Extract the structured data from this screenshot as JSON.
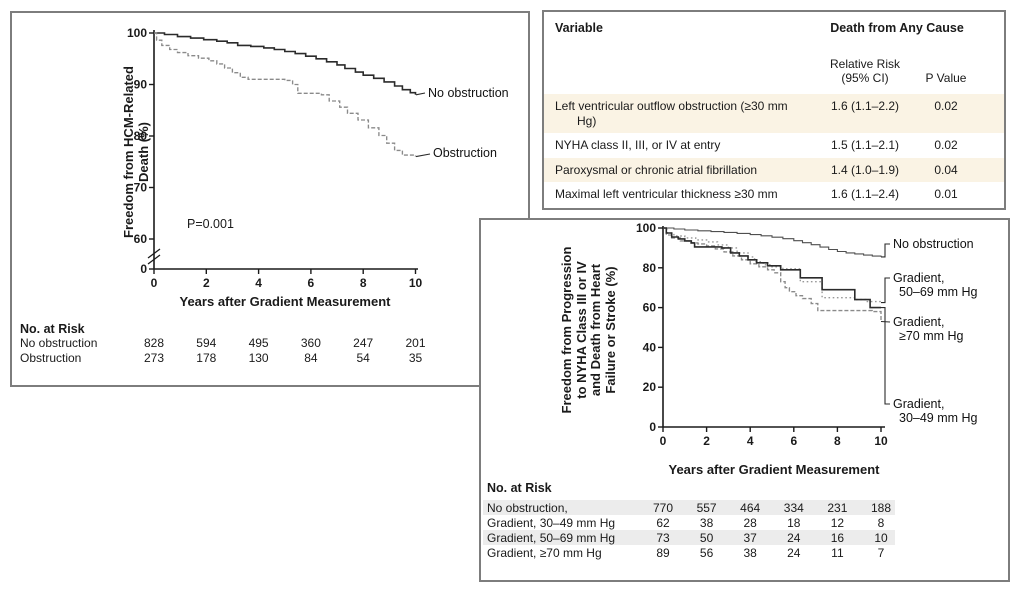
{
  "figure": {
    "rr_table": {
      "col_header": "Variable",
      "group_header": "Death from Any Cause",
      "subheader_line1": "Relative Risk",
      "subheader_line2": "(95% CI)",
      "pvalue_header": "P Value",
      "rows": [
        {
          "variable": "Left ventricular outflow obstruction (≥30 mm Hg)",
          "rr": "1.6 (1.1–2.2)",
          "p": "0.02",
          "shaded": true
        },
        {
          "variable": "NYHA class II, III, or IV at entry",
          "rr": "1.5 (1.1–2.1)",
          "p": "0.02",
          "shaded": false
        },
        {
          "variable": "Paroxysmal or chronic atrial fibrillation",
          "rr": "1.4 (1.0–1.9)",
          "p": "0.04",
          "shaded": true
        },
        {
          "variable": "Maximal left ventricular thickness ≥30 mm",
          "rr": "1.6 (1.1–2.4)",
          "p": "0.01",
          "shaded": false
        }
      ]
    },
    "colors": {
      "panel_border": "#7d7d7d",
      "table_row_cream": "#faf3e4",
      "risk_row_gray": "#ececec",
      "curve_dark": "#2b2b2b",
      "curve_gray": "#8a8a8a"
    }
  },
  "chart_data": [
    {
      "id": "freedom-from-hcm-death",
      "type": "line",
      "subtype": "kaplan-meier-step",
      "ylabel_lines": [
        "Freedom from HCM-Related",
        "Death (%)"
      ],
      "xlabel": "Years after Gradient Measurement",
      "annotation": "P=0.001",
      "xlim": [
        0,
        10
      ],
      "xticks": [
        0,
        2,
        4,
        6,
        8,
        10
      ],
      "yticks": [
        100,
        90,
        80,
        70,
        60
      ],
      "ybreak_to_zero": true,
      "grid": false,
      "series": [
        {
          "name": "No obstruction",
          "line": "solid-dark",
          "points": [
            [
              0,
              100
            ],
            [
              0.4,
              99.7
            ],
            [
              0.9,
              99.3
            ],
            [
              1.4,
              99
            ],
            [
              1.9,
              98.7
            ],
            [
              2.4,
              98.4
            ],
            [
              2.8,
              98.1
            ],
            [
              3.2,
              97.6
            ],
            [
              3.7,
              97.4
            ],
            [
              4.2,
              97.1
            ],
            [
              4.6,
              96.8
            ],
            [
              5,
              96.4
            ],
            [
              5.4,
              96
            ],
            [
              5.8,
              95.5
            ],
            [
              6.2,
              95
            ],
            [
              6.6,
              94.4
            ],
            [
              7,
              93.8
            ],
            [
              7.3,
              93.1
            ],
            [
              7.7,
              92.4
            ],
            [
              8,
              91.8
            ],
            [
              8.4,
              91.2
            ],
            [
              8.8,
              90.5
            ],
            [
              9.2,
              89.7
            ],
            [
              9.5,
              89
            ],
            [
              9.8,
              88.4
            ],
            [
              10,
              88
            ]
          ]
        },
        {
          "name": "Obstruction",
          "line": "dashed-gray",
          "points": [
            [
              0,
              100
            ],
            [
              0.1,
              98.6
            ],
            [
              0.3,
              97.6
            ],
            [
              0.6,
              96.8
            ],
            [
              0.9,
              96.2
            ],
            [
              1.3,
              95.6
            ],
            [
              1.7,
              95.1
            ],
            [
              2.1,
              94.6
            ],
            [
              2.4,
              94
            ],
            [
              2.7,
              93.2
            ],
            [
              3,
              92.3
            ],
            [
              3.3,
              91.4
            ],
            [
              3.6,
              91
            ],
            [
              5,
              90.8
            ],
            [
              5.3,
              90
            ],
            [
              5.5,
              88.3
            ],
            [
              6.4,
              88
            ],
            [
              6.7,
              86.8
            ],
            [
              7.1,
              85.6
            ],
            [
              7.4,
              84.4
            ],
            [
              7.8,
              83.1
            ],
            [
              8.2,
              81.6
            ],
            [
              8.6,
              80.1
            ],
            [
              8.9,
              78.6
            ],
            [
              9.2,
              77.2
            ],
            [
              9.5,
              76.3
            ],
            [
              10,
              76
            ]
          ]
        }
      ],
      "risk_table": {
        "title": "No. at Risk",
        "years": [
          0,
          2,
          4,
          6,
          8,
          10
        ],
        "rows": [
          {
            "label": "No obstruction",
            "values": [
              828,
              594,
              495,
              360,
              247,
              201
            ],
            "shaded": false
          },
          {
            "label": "Obstruction",
            "values": [
              273,
              178,
              130,
              84,
              54,
              35
            ],
            "shaded": false
          }
        ]
      }
    },
    {
      "id": "freedom-from-nyha-progression",
      "type": "line",
      "subtype": "kaplan-meier-step",
      "ylabel_lines": [
        "Freedom from Progression",
        "to NYHA Class III or IV",
        "and Death from Heart",
        "Failure or Stroke (%)"
      ],
      "xlabel": "Years after Gradient Measurement",
      "annotation": "",
      "xlim": [
        0,
        10
      ],
      "xticks": [
        0,
        2,
        4,
        6,
        8,
        10
      ],
      "yticks": [
        100,
        80,
        60,
        40,
        20,
        0
      ],
      "ybreak_to_zero": false,
      "grid": false,
      "series": [
        {
          "name": "No obstruction",
          "label_lines": [
            "No obstruction"
          ],
          "line": "solid-thin",
          "points": [
            [
              0,
              100
            ],
            [
              0.5,
              99.5
            ],
            [
              1,
              99
            ],
            [
              1.6,
              98.6
            ],
            [
              2.2,
              98.2
            ],
            [
              2.8,
              97.8
            ],
            [
              3.4,
              97.3
            ],
            [
              4,
              96.7
            ],
            [
              4.5,
              96.1
            ],
            [
              5,
              95.4
            ],
            [
              5.5,
              94.6
            ],
            [
              6,
              93.6
            ],
            [
              6.4,
              92.6
            ],
            [
              6.8,
              91.6
            ],
            [
              7.2,
              90.4
            ],
            [
              7.6,
              89.2
            ],
            [
              8,
              88.2
            ],
            [
              8.4,
              87.5
            ],
            [
              8.8,
              87
            ],
            [
              9.2,
              86.4
            ],
            [
              9.6,
              85.9
            ],
            [
              10,
              85.5
            ]
          ]
        },
        {
          "name": "Gradient, 50–69 mm Hg",
          "label_lines": [
            "Gradient,",
            "50–69 mm Hg"
          ],
          "line": "dotted-gray",
          "points": [
            [
              0,
              100
            ],
            [
              0.2,
              97.5
            ],
            [
              0.5,
              96
            ],
            [
              1,
              95
            ],
            [
              1.5,
              94
            ],
            [
              2,
              93
            ],
            [
              2.5,
              91.5
            ],
            [
              3,
              90
            ],
            [
              3.4,
              87.5
            ],
            [
              3.9,
              85.5
            ],
            [
              4.2,
              83
            ],
            [
              4.6,
              81.5
            ],
            [
              5,
              80.5
            ],
            [
              5.5,
              79.5
            ],
            [
              6.3,
              73
            ],
            [
              7.3,
              65
            ],
            [
              8.8,
              64
            ],
            [
              9.3,
              63
            ],
            [
              10,
              62.5
            ]
          ]
        },
        {
          "name": "Gradient, ≥70 mm Hg",
          "label_lines": [
            "Gradient,",
            "≥70 mm Hg"
          ],
          "line": "dashed-gray",
          "points": [
            [
              0,
              100
            ],
            [
              0.15,
              96.5
            ],
            [
              0.4,
              95
            ],
            [
              0.8,
              93.5
            ],
            [
              1.2,
              92.5
            ],
            [
              1.6,
              92
            ],
            [
              2,
              91
            ],
            [
              2.4,
              89.5
            ],
            [
              2.8,
              88
            ],
            [
              3.2,
              86
            ],
            [
              3.6,
              84
            ],
            [
              4,
              82
            ],
            [
              4.4,
              80.5
            ],
            [
              4.8,
              79
            ],
            [
              5.1,
              77.5
            ],
            [
              5.4,
              73
            ],
            [
              5.6,
              70
            ],
            [
              5.8,
              68
            ],
            [
              6.1,
              66
            ],
            [
              6.4,
              64.5
            ],
            [
              6.8,
              62
            ],
            [
              7.1,
              58.5
            ],
            [
              9.6,
              58
            ],
            [
              10,
              53
            ]
          ]
        },
        {
          "name": "Gradient, 30–49 mm Hg",
          "label_lines": [
            "Gradient,",
            "30–49 mm Hg"
          ],
          "line": "solid-dark",
          "points": [
            [
              0,
              100
            ],
            [
              0.15,
              97.5
            ],
            [
              0.4,
              95.5
            ],
            [
              0.7,
              94.5
            ],
            [
              1,
              93.5
            ],
            [
              1.3,
              92.5
            ],
            [
              1.45,
              90.5
            ],
            [
              2.7,
              90
            ],
            [
              3.1,
              87.5
            ],
            [
              3.5,
              86
            ],
            [
              3.9,
              84
            ],
            [
              4.3,
              82.5
            ],
            [
              4.8,
              81
            ],
            [
              5.4,
              79
            ],
            [
              6.3,
              75
            ],
            [
              7.3,
              69
            ],
            [
              8.8,
              64
            ],
            [
              9.5,
              60
            ],
            [
              10,
              60
            ]
          ]
        }
      ],
      "risk_table": {
        "title": "No. at Risk",
        "years": [
          0,
          2,
          4,
          6,
          8,
          10
        ],
        "rows": [
          {
            "label": "No obstruction,",
            "values": [
              770,
              557,
              464,
              334,
              231,
              188
            ],
            "shaded": true
          },
          {
            "label": "Gradient, 30–49 mm Hg",
            "values": [
              62,
              38,
              28,
              18,
              12,
              8
            ],
            "shaded": false
          },
          {
            "label": "Gradient, 50–69 mm Hg",
            "values": [
              73,
              50,
              37,
              24,
              16,
              10
            ],
            "shaded": true
          },
          {
            "label": "Gradient, ≥70 mm Hg",
            "values": [
              89,
              56,
              38,
              24,
              11,
              7
            ],
            "shaded": false
          }
        ]
      }
    }
  ]
}
